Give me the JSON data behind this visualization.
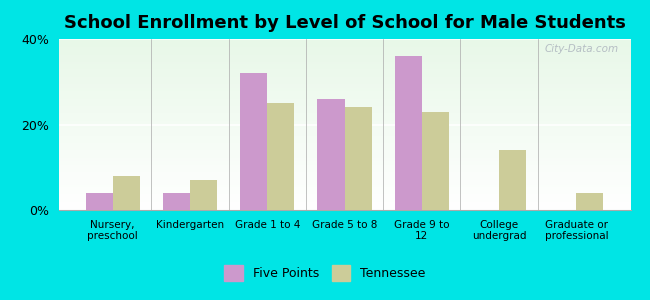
{
  "title": "School Enrollment by Level of School for Male Students",
  "categories": [
    "Nursery,\npreschool",
    "Kindergarten",
    "Grade 1 to 4",
    "Grade 5 to 8",
    "Grade 9 to\n12",
    "College\nundergrad",
    "Graduate or\nprofessional"
  ],
  "five_points": [
    4.0,
    4.0,
    32.0,
    26.0,
    36.0,
    0.0,
    0.0
  ],
  "tennessee": [
    8.0,
    7.0,
    25.0,
    24.0,
    23.0,
    14.0,
    4.0
  ],
  "five_points_color": "#cc99cc",
  "tennessee_color": "#cccc99",
  "background_color": "#00e5e5",
  "grad_top": "#e8f8e8",
  "grad_bottom": "#ffffff",
  "ylim": [
    0,
    40
  ],
  "yticks": [
    0,
    20,
    40
  ],
  "ytick_labels": [
    "0%",
    "20%",
    "40%"
  ],
  "title_fontsize": 13,
  "legend_labels": [
    "Five Points",
    "Tennessee"
  ],
  "watermark": "City-Data.com"
}
